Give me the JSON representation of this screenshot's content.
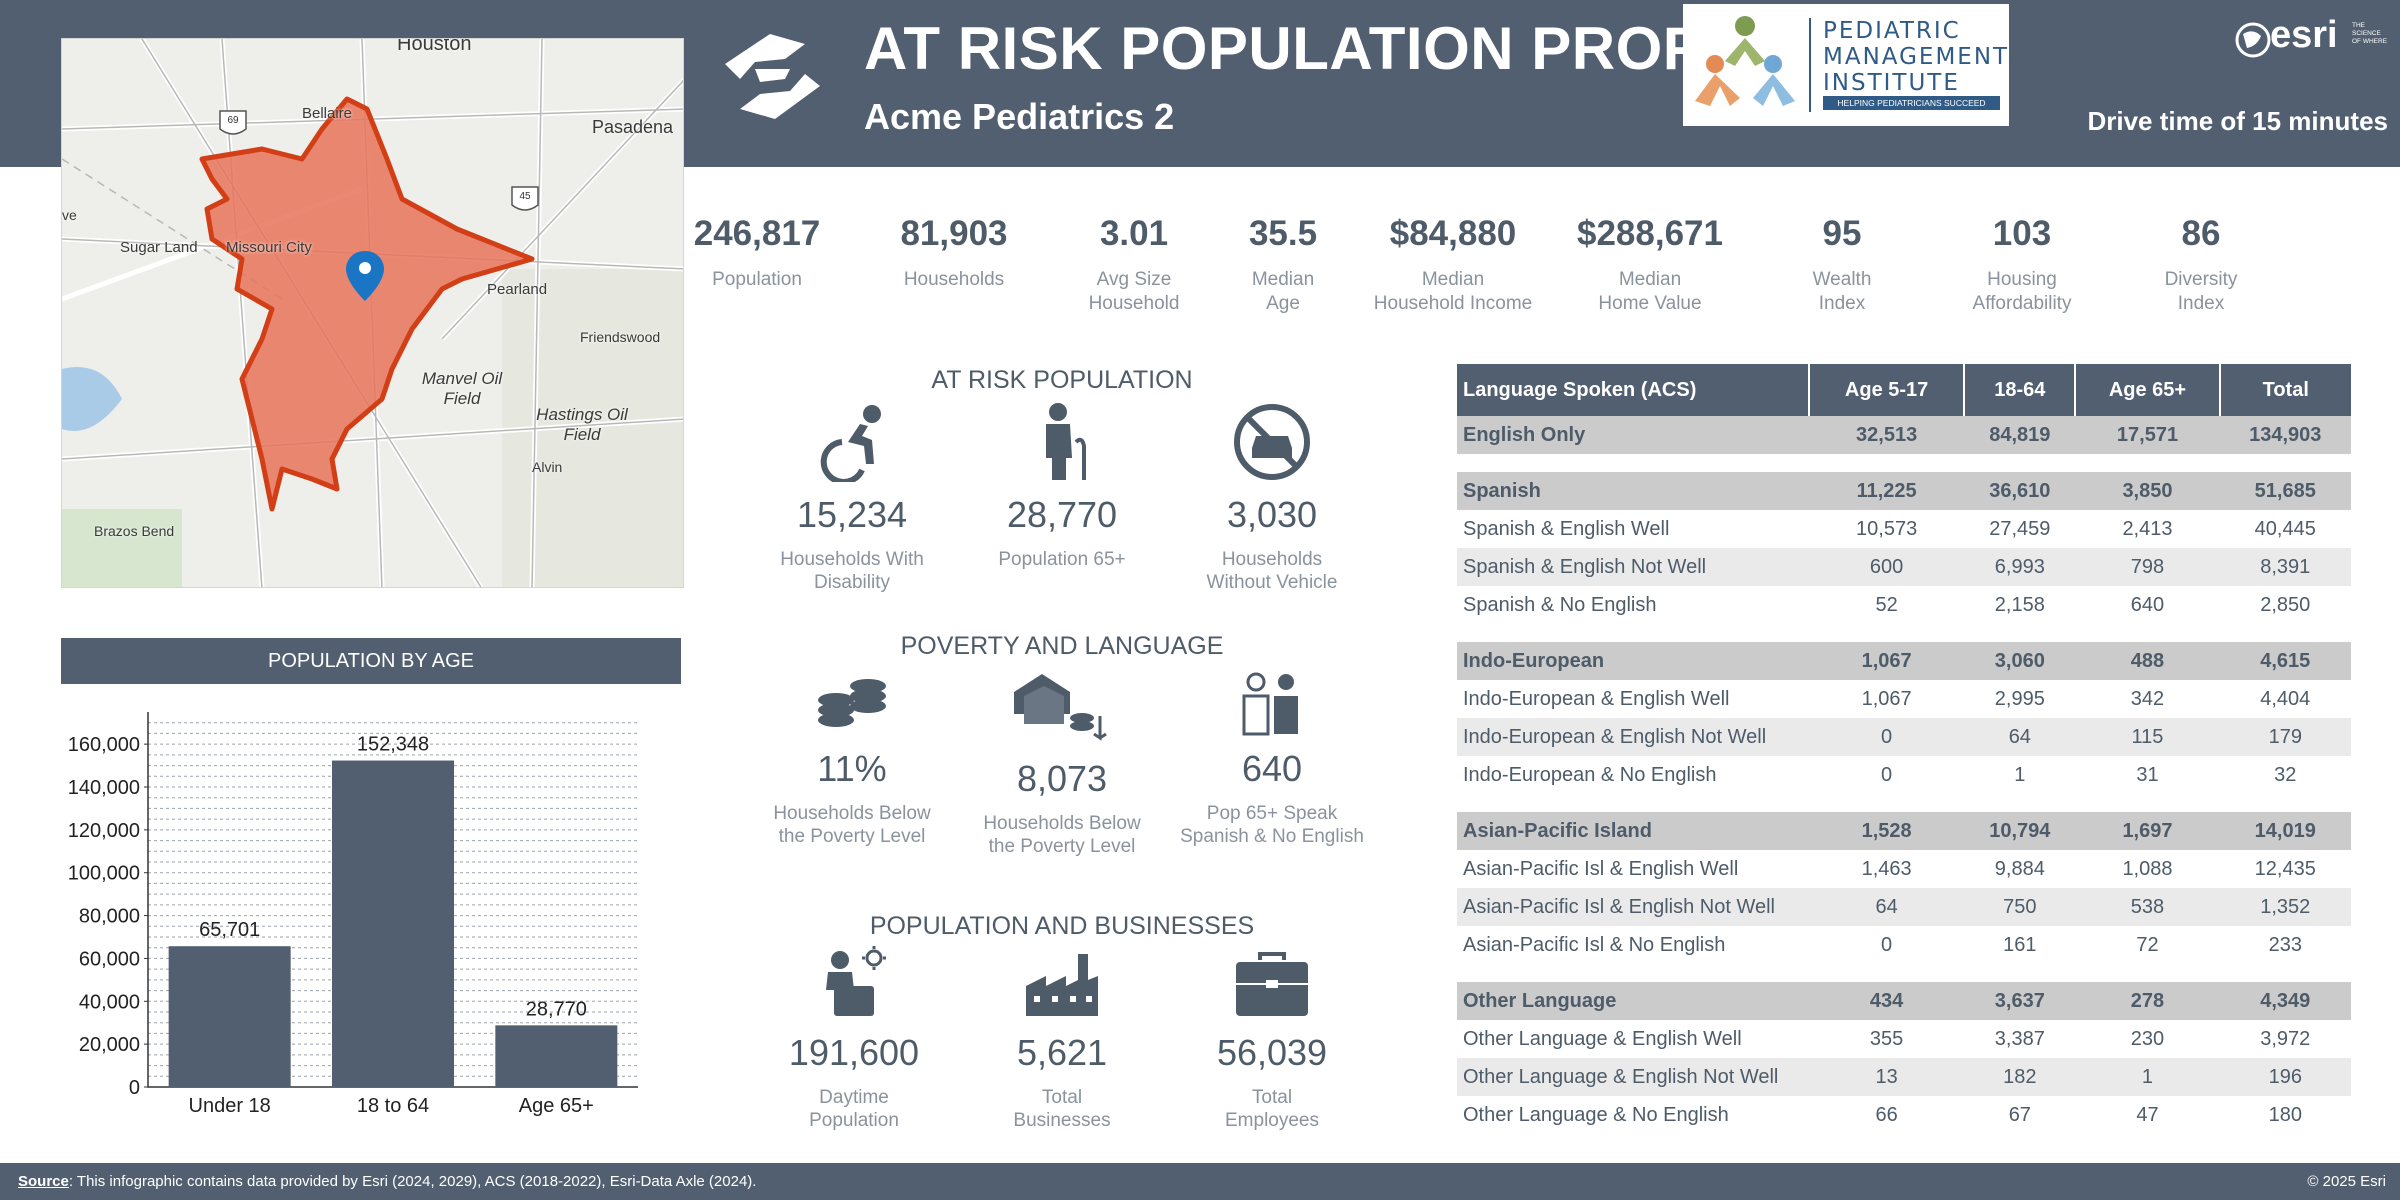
{
  "header": {
    "title": "AT RISK POPULATION PROFILE",
    "subtitle": "Acme Pediatrics 2",
    "drive_time": "Drive time of 15 minutes",
    "partner_logo": [
      "PEDIATRIC",
      "MANAGEMENT",
      "INSTITUTE",
      "HELPING PEDIATRICIANS SUCCEED"
    ],
    "esri_word": "esri",
    "esri_tagline": "THE SCIENCE OF WHERE"
  },
  "map": {
    "labels": [
      "Houston",
      "Bellaire",
      "Pasadena",
      "Sugar Land",
      "Missouri City",
      "Pearland",
      "Friendswood",
      "Manvel Oil Field",
      "Hastings Oil Field",
      "Alvin",
      "Brazos Bend",
      "ve"
    ],
    "highway_shields": [
      "69",
      "45"
    ],
    "area_color": "#e8735a",
    "outline_color": "#d23f16",
    "pin_color": "#1a76c5"
  },
  "metrics": [
    {
      "value": "246,817",
      "label": [
        "Population"
      ]
    },
    {
      "value": "81,903",
      "label": [
        "Households"
      ]
    },
    {
      "value": "3.01",
      "label": [
        "Avg Size",
        "Household"
      ]
    },
    {
      "value": "35.5",
      "label": [
        "Median",
        "Age"
      ]
    },
    {
      "value": "$84,880",
      "label": [
        "Median",
        "Household Income"
      ]
    },
    {
      "value": "$288,671",
      "label": [
        "Median",
        "Home Value"
      ]
    },
    {
      "value": "95",
      "label": [
        "Wealth",
        "Index"
      ]
    },
    {
      "value": "103",
      "label": [
        "Housing",
        "Affordability"
      ]
    },
    {
      "value": "86",
      "label": [
        "Diversity",
        "Index"
      ]
    }
  ],
  "age_chart_title": "POPULATION BY AGE",
  "chart_data": {
    "type": "bar",
    "categories": [
      "Under 18",
      "18 to 64",
      "Age 65+"
    ],
    "values": [
      65701,
      152348,
      28770
    ],
    "data_labels": [
      "65,701",
      "152,348",
      "28,770"
    ],
    "yticks": [
      "0",
      "20,000",
      "40,000",
      "60,000",
      "80,000",
      "100,000",
      "120,000",
      "140,000",
      "160,000"
    ],
    "ylim": [
      0,
      175000
    ],
    "grid": true,
    "bar_color": "#515f70"
  },
  "sections": {
    "at_risk": {
      "title": "AT RISK POPULATION",
      "stats": [
        {
          "icon": "wheelchair-icon",
          "value": "15,234",
          "label": [
            "Households With",
            "Disability"
          ]
        },
        {
          "icon": "elderly-person-icon",
          "value": "28,770",
          "label": [
            "Population 65+"
          ]
        },
        {
          "icon": "no-vehicle-icon",
          "value": "3,030",
          "label": [
            "Households",
            "Without Vehicle"
          ]
        }
      ]
    },
    "poverty": {
      "title": "POVERTY AND LANGUAGE",
      "stats": [
        {
          "icon": "coins-icon",
          "value": "11%",
          "label": [
            "Households Below",
            "the Poverty Level"
          ]
        },
        {
          "icon": "houses-coins-icon",
          "value": "8,073",
          "label": [
            "Households Below",
            "the Poverty Level"
          ]
        },
        {
          "icon": "people-talking-icon",
          "value": "640",
          "label": [
            "Pop 65+ Speak",
            "Spanish & No English"
          ]
        }
      ]
    },
    "business": {
      "title": "POPULATION AND BUSINESSES",
      "stats": [
        {
          "icon": "worker-briefcase-icon",
          "value": "191,600",
          "label": [
            "Daytime",
            "Population"
          ]
        },
        {
          "icon": "factory-icon",
          "value": "5,621",
          "label": [
            "Total",
            "Businesses"
          ]
        },
        {
          "icon": "briefcase-icon",
          "value": "56,039",
          "label": [
            "Total",
            "Employees"
          ]
        }
      ]
    }
  },
  "language_table": {
    "headers": [
      "Language Spoken (ACS)",
      "Age 5-17",
      "18-64",
      "Age 65+",
      "Total"
    ],
    "rows": [
      {
        "type": "cat",
        "cells": [
          "English Only",
          "32,513",
          "84,819",
          "17,571",
          "134,903"
        ]
      },
      {
        "type": "sp"
      },
      {
        "type": "cat",
        "cells": [
          "Spanish",
          "11,225",
          "36,610",
          "3,850",
          "51,685"
        ]
      },
      {
        "type": "row",
        "cells": [
          "Spanish & English Well",
          "10,573",
          "27,459",
          "2,413",
          "40,445"
        ]
      },
      {
        "type": "alt",
        "cells": [
          "Spanish & English Not Well",
          "600",
          "6,993",
          "798",
          "8,391"
        ]
      },
      {
        "type": "row",
        "cells": [
          "Spanish & No English",
          "52",
          "2,158",
          "640",
          "2,850"
        ]
      },
      {
        "type": "sp"
      },
      {
        "type": "cat",
        "cells": [
          "Indo-European",
          "1,067",
          "3,060",
          "488",
          "4,615"
        ]
      },
      {
        "type": "row",
        "cells": [
          "Indo-European & English Well",
          "1,067",
          "2,995",
          "342",
          "4,404"
        ]
      },
      {
        "type": "alt",
        "cells": [
          "Indo-European & English Not Well",
          "0",
          "64",
          "115",
          "179"
        ]
      },
      {
        "type": "row",
        "cells": [
          "Indo-European & No English",
          "0",
          "1",
          "31",
          "32"
        ]
      },
      {
        "type": "sp"
      },
      {
        "type": "cat",
        "cells": [
          "Asian-Pacific Island",
          "1,528",
          "10,794",
          "1,697",
          "14,019"
        ]
      },
      {
        "type": "row",
        "cells": [
          "Asian-Pacific Isl & English Well",
          "1,463",
          "9,884",
          "1,088",
          "12,435"
        ]
      },
      {
        "type": "alt",
        "cells": [
          "Asian-Pacific Isl & English Not Well",
          "64",
          "750",
          "538",
          "1,352"
        ]
      },
      {
        "type": "row",
        "cells": [
          "Asian-Pacific Isl & No English",
          "0",
          "161",
          "72",
          "233"
        ]
      },
      {
        "type": "sp"
      },
      {
        "type": "cat",
        "cells": [
          "Other Language",
          "434",
          "3,637",
          "278",
          "4,349"
        ]
      },
      {
        "type": "row",
        "cells": [
          "Other Language & English Well",
          "355",
          "3,387",
          "230",
          "3,972"
        ]
      },
      {
        "type": "alt",
        "cells": [
          "Other Language & English Not Well",
          "13",
          "182",
          "1",
          "196"
        ]
      },
      {
        "type": "row",
        "cells": [
          "Other Language & No English",
          "66",
          "67",
          "47",
          "180"
        ]
      }
    ]
  },
  "footer": {
    "source_label": "Source",
    "source_text": ": This infographic contains data provided by Esri (2024, 2029), ACS (2018-2022), Esri-Data Axle (2024).",
    "copyright": "© 2025 Esri"
  }
}
